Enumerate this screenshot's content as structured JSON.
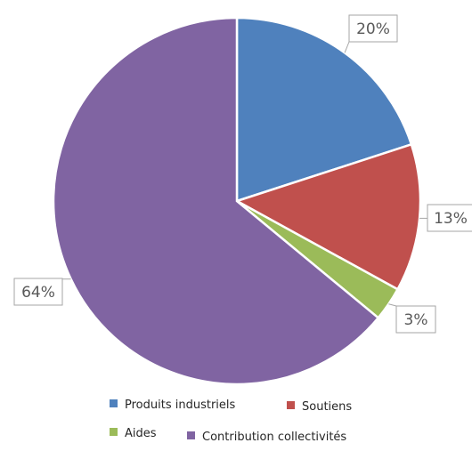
{
  "chart_data": {
    "type": "pie",
    "title": "",
    "slices": [
      {
        "name": "Produits industriels",
        "value": 20,
        "label": "20%",
        "color": "#4f81bd"
      },
      {
        "name": "Soutiens",
        "value": 13,
        "label": "13%",
        "color": "#c0504d"
      },
      {
        "name": "Aides",
        "value": 3,
        "label": "3%",
        "color": "#9bbb59"
      },
      {
        "name": "Contribution collectivités",
        "value": 64,
        "label": "64%",
        "color": "#8064a2"
      }
    ],
    "start": "12 o'clock",
    "direction": "clockwise",
    "data_labels": "callouts",
    "legend": "bottom"
  }
}
